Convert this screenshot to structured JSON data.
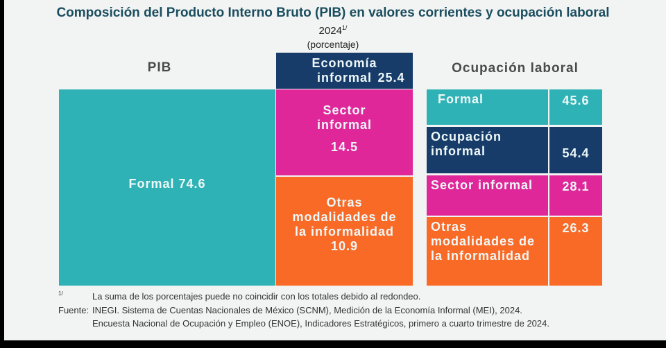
{
  "header": {
    "title": "Composición del Producto Interno Bruto (PIB) en valores corrientes y ocupación laboral",
    "year": "2024",
    "year_note": "1/",
    "unit": "(porcentaje)"
  },
  "pib": {
    "heading": "PIB",
    "formal": {
      "label": "Formal",
      "value": 74.6
    },
    "informal": {
      "label": "Economía informal",
      "value": 25.4
    },
    "sector": {
      "label": "Sector informal",
      "value": 14.5
    },
    "otras": {
      "label": "Otras modalidades de la informalidad",
      "value": 10.9
    }
  },
  "ocupacion": {
    "heading": "Ocupación laboral",
    "rows": [
      {
        "label": "Formal",
        "value": 45.6
      },
      {
        "label": "Ocupación informal",
        "value": 54.4
      },
      {
        "label": "Sector informal",
        "value": 28.1
      },
      {
        "label": "Otras modalidades de la informalidad",
        "value": 26.3
      }
    ]
  },
  "notes": {
    "mark": "1/",
    "note": "La suma de los porcentajes puede no coincidir con los totales debido al redondeo.",
    "source_label": "Fuente:",
    "source_1": "INEGI. Sistema de Cuentas Nacionales de México (SCNM), Medición de la Economía Informal (MEI), 2024.",
    "source_2": "Encuesta Nacional de Ocupación y Empleo (ENOE), Indicadores Estratégicos, primero a cuarto trimestre de 2024."
  }
}
